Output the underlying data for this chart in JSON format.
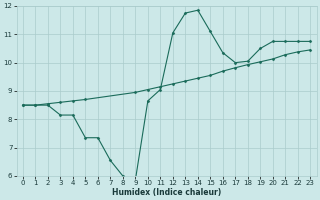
{
  "title": "",
  "xlabel": "Humidex (Indice chaleur)",
  "ylabel": "",
  "xlim": [
    -0.5,
    23.5
  ],
  "ylim": [
    6,
    12
  ],
  "yticks": [
    6,
    7,
    8,
    9,
    10,
    11,
    12
  ],
  "xticks": [
    0,
    1,
    2,
    3,
    4,
    5,
    6,
    7,
    8,
    9,
    10,
    11,
    12,
    13,
    14,
    15,
    16,
    17,
    18,
    19,
    20,
    21,
    22,
    23
  ],
  "bg_color": "#cce8e8",
  "grid_color": "#aacccc",
  "line_color": "#1a6b5a",
  "line1_x": [
    0,
    1,
    2,
    3,
    4,
    5,
    6,
    7,
    8,
    9,
    10,
    11,
    12,
    13,
    14,
    15,
    16,
    17,
    18,
    19,
    20,
    21,
    22,
    23
  ],
  "line1_y": [
    8.5,
    8.5,
    8.5,
    8.15,
    8.15,
    7.35,
    7.35,
    6.55,
    6.0,
    5.85,
    8.65,
    9.05,
    11.05,
    11.75,
    11.85,
    11.1,
    10.35,
    10.0,
    10.05,
    10.5,
    10.75,
    10.75,
    10.75,
    10.75
  ],
  "line2_x": [
    0,
    1,
    2,
    3,
    4,
    5,
    9,
    10,
    11,
    12,
    13,
    14,
    15,
    16,
    17,
    18,
    19,
    20,
    21,
    22,
    23
  ],
  "line2_y": [
    8.5,
    8.5,
    8.55,
    8.6,
    8.65,
    8.7,
    8.95,
    9.05,
    9.15,
    9.25,
    9.35,
    9.45,
    9.55,
    9.7,
    9.82,
    9.93,
    10.03,
    10.13,
    10.28,
    10.38,
    10.45
  ]
}
